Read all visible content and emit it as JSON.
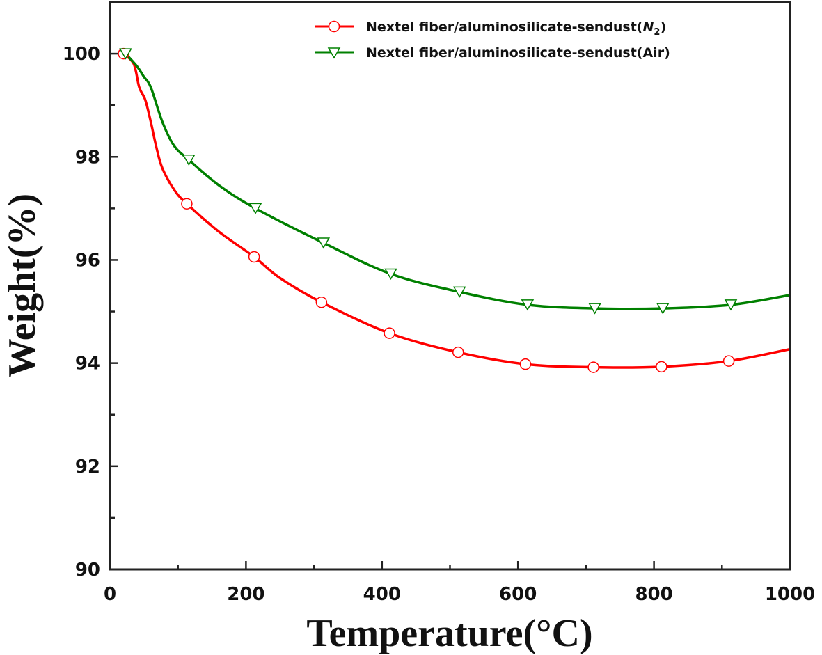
{
  "chart_data": {
    "type": "line",
    "title": "",
    "xlabel": "Temperature(°C)",
    "ylabel": "Weight(%)",
    "xlim": [
      0,
      1000
    ],
    "ylim": [
      90,
      101
    ],
    "xticks": [
      0,
      200,
      400,
      600,
      800,
      1000
    ],
    "yticks": [
      90,
      92,
      94,
      96,
      98,
      100
    ],
    "xtick_labels": [
      "0",
      "200",
      "400",
      "600",
      "800",
      "1000"
    ],
    "ytick_labels": [
      "90",
      "92",
      "94",
      "96",
      "98",
      "100"
    ],
    "grid": false,
    "legend_placement": "top-right",
    "series": [
      {
        "name": "Nextel fiber/aluminosilicate-sendust(N2)",
        "legend_main": "Nextel fiber/aluminosilicate-sendust(",
        "legend_italic": "N",
        "legend_sub": "2",
        "legend_end": ")",
        "color": "#ff0000",
        "marker": "circle",
        "curve": [
          [
            20,
            100
          ],
          [
            35,
            99.8
          ],
          [
            43,
            99.35
          ],
          [
            52,
            99.1
          ],
          [
            60,
            98.68
          ],
          [
            68,
            98.2
          ],
          [
            77,
            97.78
          ],
          [
            95,
            97.35
          ],
          [
            113,
            97.09
          ],
          [
            160,
            96.55
          ],
          [
            212,
            96.06
          ],
          [
            250,
            95.65
          ],
          [
            311,
            95.18
          ],
          [
            411,
            94.58
          ],
          [
            512,
            94.21
          ],
          [
            611,
            93.98
          ],
          [
            711,
            93.92
          ],
          [
            811,
            93.93
          ],
          [
            910,
            94.04
          ],
          [
            1000,
            94.27
          ]
        ],
        "markers": [
          [
            20,
            100
          ],
          [
            113,
            97.09
          ],
          [
            212,
            96.06
          ],
          [
            311,
            95.18
          ],
          [
            411,
            94.58
          ],
          [
            512,
            94.21
          ],
          [
            611,
            93.98
          ],
          [
            711,
            93.92
          ],
          [
            811,
            93.93
          ],
          [
            910,
            94.04
          ]
        ]
      },
      {
        "name": "Nextel fiber/aluminosilicate-sendust(Air)",
        "legend_main": "Nextel fiber/aluminosilicate-sendust(Air)",
        "color": "#008000",
        "marker": "triangle-down",
        "curve": [
          [
            23,
            100
          ],
          [
            40,
            99.75
          ],
          [
            50,
            99.55
          ],
          [
            60,
            99.35
          ],
          [
            77,
            98.68
          ],
          [
            94,
            98.22
          ],
          [
            116,
            97.94
          ],
          [
            160,
            97.45
          ],
          [
            214,
            97.0
          ],
          [
            314,
            96.33
          ],
          [
            413,
            95.73
          ],
          [
            514,
            95.38
          ],
          [
            614,
            95.13
          ],
          [
            713,
            95.06
          ],
          [
            813,
            95.06
          ],
          [
            913,
            95.13
          ],
          [
            1000,
            95.32
          ]
        ],
        "markers": [
          [
            23,
            100
          ],
          [
            116,
            97.94
          ],
          [
            214,
            97.0
          ],
          [
            314,
            96.33
          ],
          [
            413,
            95.73
          ],
          [
            514,
            95.38
          ],
          [
            614,
            95.13
          ],
          [
            713,
            95.06
          ],
          [
            813,
            95.06
          ],
          [
            913,
            95.13
          ]
        ]
      }
    ]
  }
}
